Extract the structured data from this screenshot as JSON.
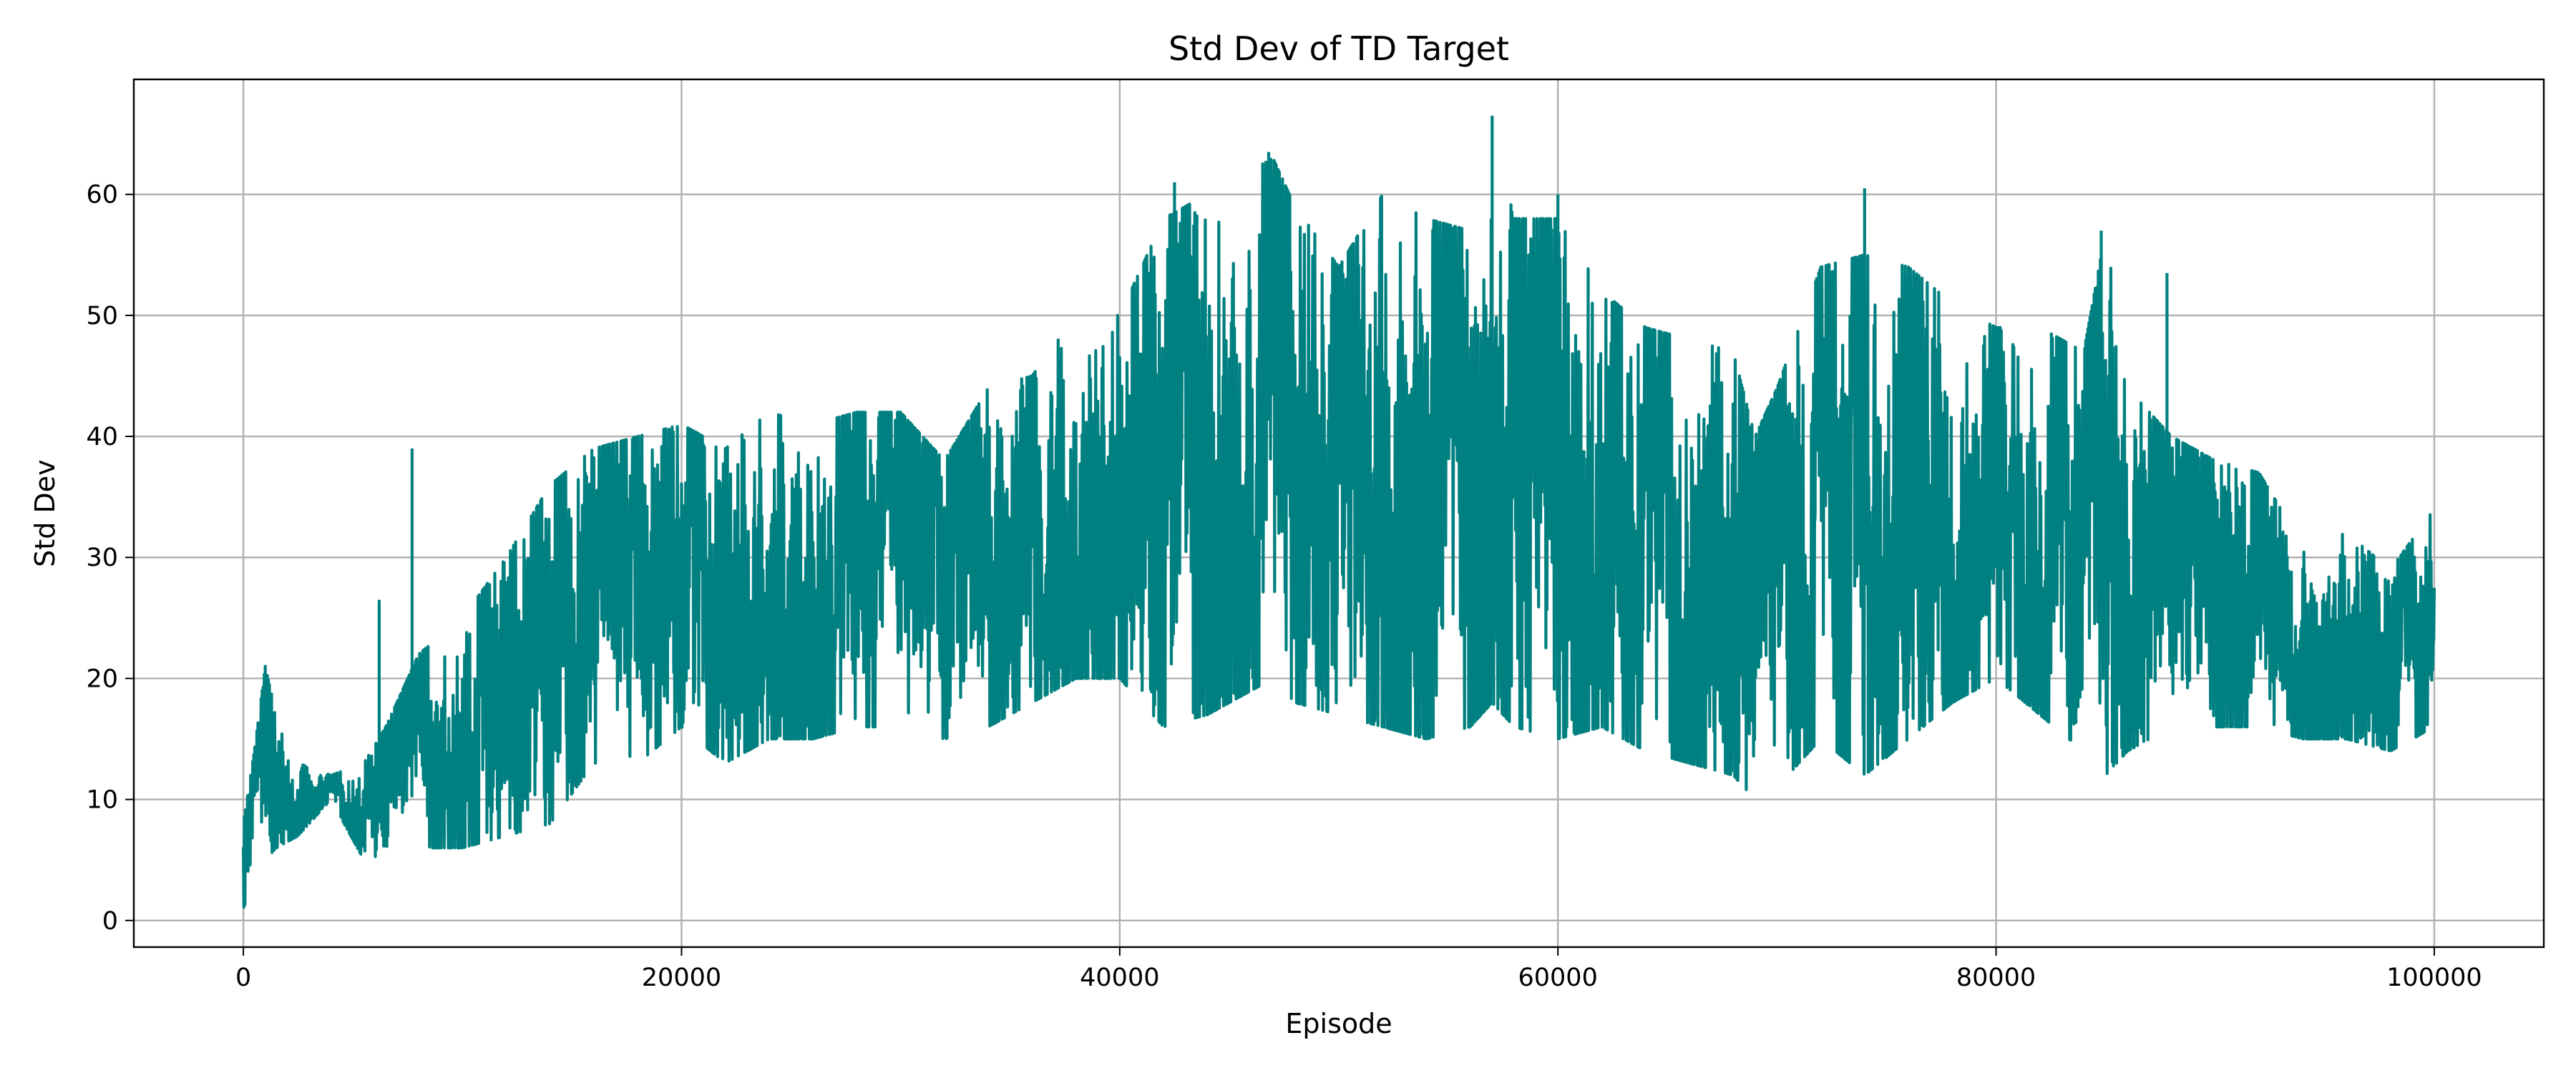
{
  "chart_data": {
    "type": "line",
    "title": "Std Dev of TD Target",
    "xlabel": "Episode",
    "ylabel": "Std Dev",
    "xlim": [
      -5000,
      105000
    ],
    "ylim": [
      -2.2,
      69.5
    ],
    "xticks": [
      0,
      20000,
      40000,
      60000,
      80000,
      100000
    ],
    "yticks": [
      0,
      10,
      20,
      30,
      40,
      50,
      60
    ],
    "grid": true,
    "legend": "none",
    "colors": {
      "series": "#008080"
    },
    "series": [
      {
        "envelope_x": [
          0,
          500,
          1000,
          1500,
          2500,
          4000,
          5500,
          6500,
          8000,
          10000,
          12000,
          14000,
          16000,
          18000,
          20000,
          22000,
          24000,
          26000,
          28000,
          30000,
          32000,
          34000,
          36000,
          38000,
          40000,
          42000,
          44000,
          46000,
          47000,
          48000,
          50000,
          52000,
          54000,
          56000,
          57000,
          58000,
          60000,
          62000,
          64000,
          66000,
          68000,
          69000,
          70000,
          72000,
          74000,
          76000,
          78000,
          80000,
          82000,
          84000,
          85000,
          86000,
          88000,
          90000,
          92000,
          94000,
          96000,
          98000,
          100000
        ],
        "envelope_max": [
          8,
          14,
          21,
          17,
          13,
          12,
          13,
          16,
          22,
          25,
          30,
          36,
          39,
          40,
          41,
          39,
          42,
          41,
          42,
          42,
          38,
          44,
          45,
          50,
          50,
          58,
          60,
          62,
          63,
          59,
          54,
          60,
          58,
          57,
          66,
          58,
          58,
          52,
          49,
          48,
          47,
          40,
          44,
          54,
          55,
          54,
          51,
          49,
          49,
          47,
          57,
          44,
          40,
          38,
          37,
          31,
          32,
          29,
          34
        ],
        "envelope_min": [
          1,
          3,
          5,
          6,
          7,
          10,
          5,
          5,
          6,
          6,
          7,
          8,
          13,
          13,
          16,
          13,
          15,
          15,
          16,
          16,
          15,
          16,
          18,
          20,
          20,
          16,
          17,
          19,
          20,
          18,
          17,
          16,
          15,
          16,
          18,
          16,
          15,
          16,
          14,
          13,
          12,
          10,
          11,
          15,
          12,
          15,
          18,
          20,
          17,
          14,
          12,
          14,
          16,
          16,
          16,
          15,
          15,
          14,
          16
        ],
        "spikes": [
          {
            "x": 7700,
            "y": 39
          },
          {
            "x": 6200,
            "y": 26.5
          },
          {
            "x": 57000,
            "y": 66.5
          },
          {
            "x": 74000,
            "y": 60.5
          },
          {
            "x": 87800,
            "y": 53.5
          },
          {
            "x": 84800,
            "y": 57
          },
          {
            "x": 42500,
            "y": 61
          },
          {
            "x": 60000,
            "y": 60
          },
          {
            "x": 46800,
            "y": 63.5
          }
        ]
      }
    ]
  }
}
